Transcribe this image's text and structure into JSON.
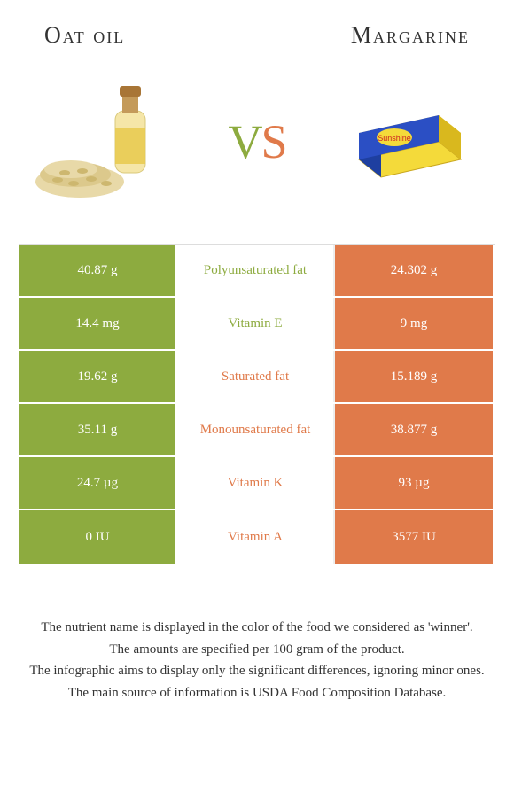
{
  "header": {
    "left_title": "Oat oil",
    "right_title": "Margarine"
  },
  "vs": {
    "v": "V",
    "s": "S"
  },
  "colors": {
    "green": "#8dab3f",
    "orange": "#e07a4a",
    "white": "#ffffff",
    "text": "#333333"
  },
  "table": {
    "rows": [
      {
        "left": "40.87 g",
        "label": "Polyunsaturated fat",
        "right": "24.302 g",
        "winner": "green"
      },
      {
        "left": "14.4 mg",
        "label": "Vitamin E",
        "right": "9 mg",
        "winner": "green"
      },
      {
        "left": "19.62 g",
        "label": "Saturated fat",
        "right": "15.189 g",
        "winner": "orange"
      },
      {
        "left": "35.11 g",
        "label": "Monounsaturated fat",
        "right": "38.877 g",
        "winner": "orange"
      },
      {
        "left": "24.7 µg",
        "label": "Vitamin K",
        "right": "93 µg",
        "winner": "orange"
      },
      {
        "left": "0 IU",
        "label": "Vitamin A",
        "right": "3577 IU",
        "winner": "orange"
      }
    ]
  },
  "footnotes": [
    "The nutrient name is displayed in the color of the food we considered as 'winner'.",
    "The amounts are specified per 100 gram of the product.",
    "The infographic aims to display only the significant differences, ignoring minor ones.",
    "The main source of information is USDA Food Composition Database."
  ]
}
